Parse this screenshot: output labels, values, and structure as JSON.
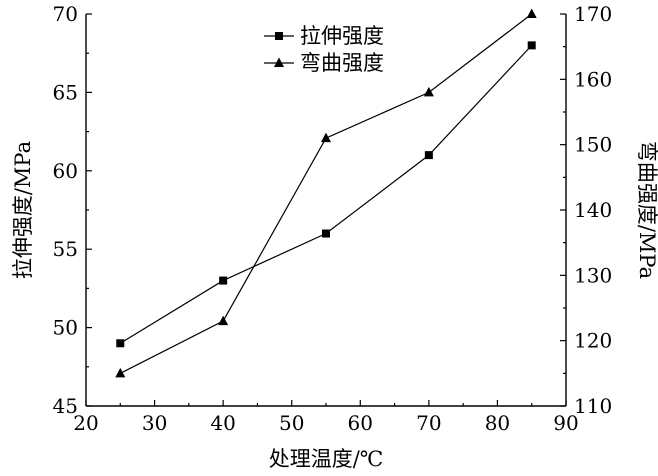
{
  "chart_data": {
    "type": "line",
    "x": [
      25,
      40,
      55,
      70,
      85
    ],
    "xlabel": "处理温度/℃",
    "xlim": [
      20,
      90
    ],
    "xticks": [
      20,
      30,
      40,
      50,
      60,
      70,
      80,
      90
    ],
    "ylabel_left": "拉伸强度/MPa",
    "ylim_left": [
      45,
      70
    ],
    "yticks_left": [
      45,
      50,
      55,
      60,
      65,
      70
    ],
    "ylabel_right": "弯曲强度/MPa",
    "ylim_right": [
      110,
      170
    ],
    "yticks_right": [
      110,
      120,
      130,
      140,
      150,
      160,
      170
    ],
    "grid": false,
    "legend_position": "top-center",
    "series": [
      {
        "name": "拉伸强度",
        "axis": "left",
        "marker": "square",
        "values": [
          49,
          53,
          56,
          61,
          68
        ]
      },
      {
        "name": "弯曲强度",
        "axis": "right",
        "marker": "triangle",
        "values": [
          115,
          123,
          151,
          158,
          170
        ]
      }
    ]
  }
}
